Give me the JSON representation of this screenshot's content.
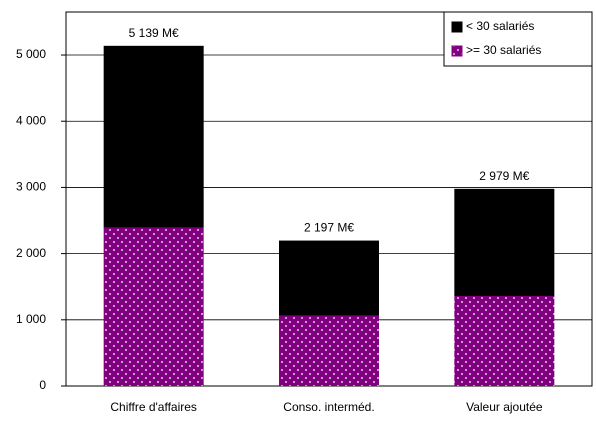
{
  "chart_data": {
    "type": "stacked_bar",
    "categories": [
      "Chiffre d'affaires",
      "Conso. interméd.",
      "Valeur ajoutée"
    ],
    "series": [
      {
        "name": ">= 30 salariés",
        "color": "#800080",
        "values": [
          2390,
          1060,
          1360
        ]
      },
      {
        "name": "< 30 salariés",
        "color": "#000000",
        "values": [
          2749,
          1137,
          1619
        ]
      }
    ],
    "annotations": [
      "5 139 M€",
      "2 197 M€",
      "2 979 M€"
    ],
    "ylim": [
      0,
      5650
    ],
    "yticks": [
      0,
      {
        "value": 1000,
        "label": "1 000"
      },
      {
        "value": 2000,
        "label": "2 000"
      },
      {
        "value": 3000,
        "label": "3 000"
      },
      {
        "value": 4000,
        "label": "4 000"
      },
      {
        "value": 5000,
        "label": "5 000"
      }
    ],
    "grid": true,
    "legend": "top-right"
  }
}
